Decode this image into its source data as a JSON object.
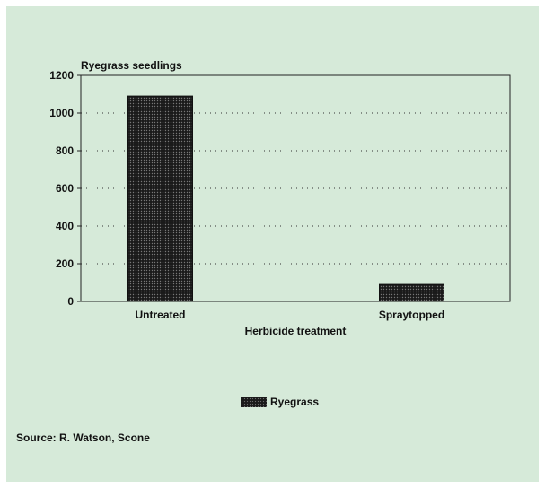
{
  "chart_data": {
    "type": "bar",
    "title": "Ryegrass seedlings",
    "xlabel": "Herbicide treatment",
    "ylabel": "",
    "categories": [
      "Untreated",
      "Spraytopped"
    ],
    "series": [
      {
        "name": "Ryegrass",
        "values": [
          1090,
          90
        ]
      }
    ],
    "ylim": [
      0,
      1200
    ],
    "yticks": [
      0,
      200,
      400,
      600,
      800,
      1000,
      1200
    ],
    "grid": true,
    "legend": "bottom-center"
  },
  "source": "Source: R. Watson, Scone",
  "colors": {
    "background": "#d6ead9",
    "bar": "#1a1a1a",
    "text": "#111111"
  }
}
